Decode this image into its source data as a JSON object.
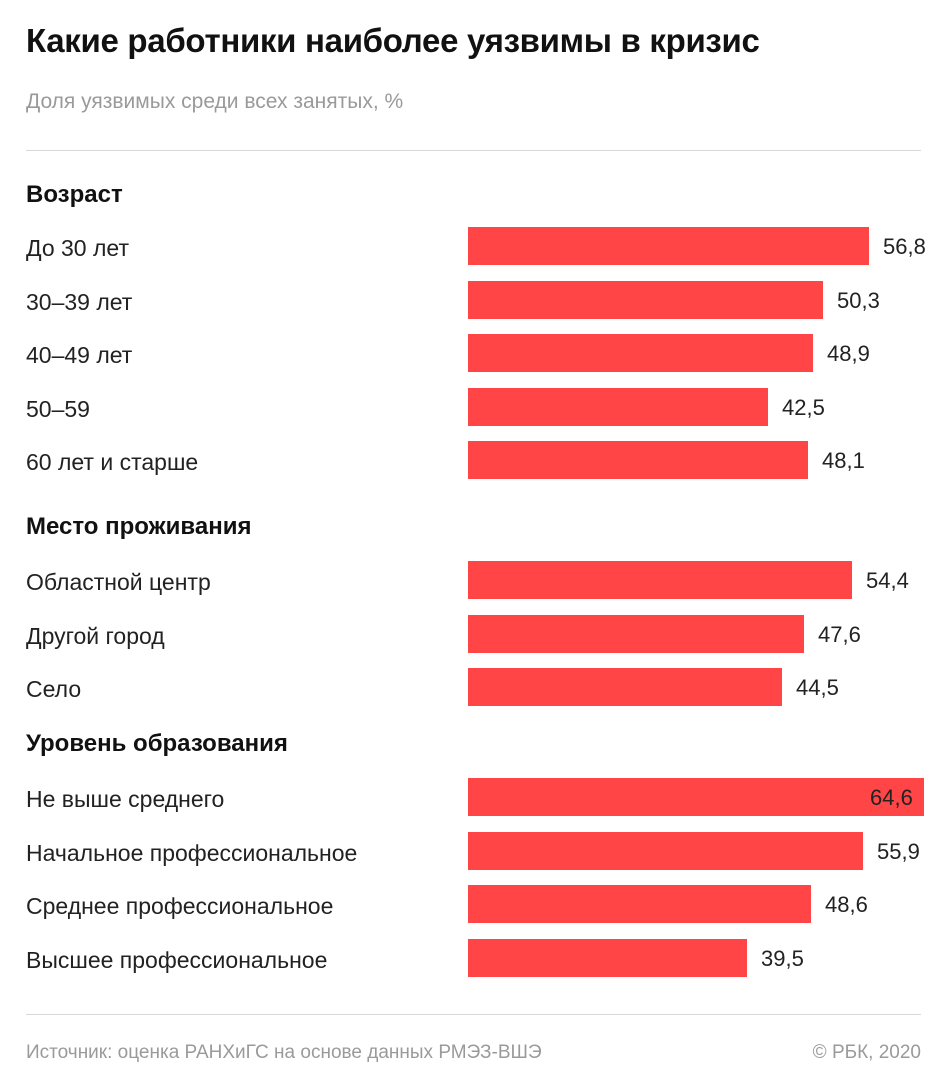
{
  "title": "Какие работники наиболее уязвимы в кризис",
  "subtitle": "Доля уязвимых среди всех занятых, %",
  "footer": {
    "source": "Источник: оценка РАНХиГС на основе данных РМЭЗ-ВШЭ",
    "copyright": "© РБК, 2020"
  },
  "colors": {
    "bar": "#ff4545"
  },
  "chart_data": {
    "type": "bar",
    "orientation": "horizontal",
    "title": "Какие работники наиболее уязвимы в кризис",
    "subtitle": "Доля уязвимых среди всех занятых, %",
    "groups": [
      {
        "name": "Возраст",
        "categories": [
          "До 30 лет",
          "30–39 лет",
          "40–49 лет",
          "50–59",
          "60 лет и старше"
        ],
        "values": [
          56.8,
          50.3,
          48.9,
          42.5,
          48.1
        ],
        "labels": [
          "56,8",
          "50,3",
          "48,9",
          "42,5",
          "48,1"
        ]
      },
      {
        "name": "Место проживания",
        "categories": [
          "Областной центр",
          "Другой город",
          "Село"
        ],
        "values": [
          54.4,
          47.6,
          44.5
        ],
        "labels": [
          "54,4",
          "47,6",
          "44,5"
        ]
      },
      {
        "name": "Уровень образования",
        "categories": [
          "Не выше среднего",
          "Начальное профессиональное",
          "Среднее профессиональное",
          "Высшее профессиональное"
        ],
        "values": [
          64.6,
          55.9,
          48.6,
          39.5
        ],
        "labels": [
          "64,6",
          "55,9",
          "48,6",
          "39,5"
        ]
      }
    ],
    "grid": false,
    "legend": "none"
  }
}
